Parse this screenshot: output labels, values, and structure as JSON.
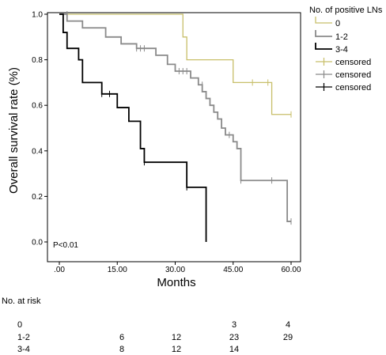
{
  "chart_data": {
    "type": "line",
    "subtype": "kaplan-meier",
    "xlabel": "Months",
    "ylabel": "Overall survival rate (%)",
    "xlim": [
      0,
      60
    ],
    "ylim": [
      0,
      1
    ],
    "xticks": [
      ".00",
      "15.00",
      "30.00",
      "45.00",
      "60.00"
    ],
    "xtick_values": [
      0,
      15,
      30,
      45,
      60
    ],
    "yticks": [
      "0.0",
      "0.2",
      "0.4",
      "0.6",
      "0.8",
      "1.0"
    ],
    "ytick_values": [
      0,
      0.2,
      0.4,
      0.6,
      0.8,
      1.0
    ],
    "grid": false,
    "legend_title": "No. of positive LNs",
    "legend_position": "top-right outside",
    "annotation": "P<0.01",
    "series": [
      {
        "name": "0",
        "censored_label": "censored",
        "color": "#c8bf6a",
        "steps": [
          [
            0,
            1.0
          ],
          [
            32,
            1.0
          ],
          [
            32,
            0.9
          ],
          [
            33,
            0.9
          ],
          [
            33,
            0.8
          ],
          [
            45,
            0.8
          ],
          [
            45,
            0.7
          ],
          [
            55,
            0.7
          ],
          [
            55,
            0.56
          ],
          [
            60,
            0.56
          ]
        ],
        "censored": [
          [
            50,
            0.7
          ],
          [
            54,
            0.7
          ],
          [
            60,
            0.56
          ]
        ]
      },
      {
        "name": "1-2",
        "censored_label": "censored",
        "color": "#8a8a8a",
        "steps": [
          [
            0,
            1.0
          ],
          [
            2,
            1.0
          ],
          [
            2,
            0.97
          ],
          [
            6,
            0.97
          ],
          [
            6,
            0.94
          ],
          [
            12,
            0.94
          ],
          [
            12,
            0.9
          ],
          [
            16,
            0.9
          ],
          [
            16,
            0.87
          ],
          [
            20,
            0.87
          ],
          [
            20,
            0.85
          ],
          [
            25,
            0.85
          ],
          [
            25,
            0.82
          ],
          [
            28,
            0.82
          ],
          [
            28,
            0.78
          ],
          [
            30,
            0.78
          ],
          [
            30,
            0.75
          ],
          [
            34,
            0.75
          ],
          [
            34,
            0.72
          ],
          [
            36,
            0.72
          ],
          [
            36,
            0.69
          ],
          [
            37,
            0.69
          ],
          [
            37,
            0.66
          ],
          [
            38,
            0.66
          ],
          [
            38,
            0.63
          ],
          [
            39,
            0.63
          ],
          [
            39,
            0.6
          ],
          [
            40,
            0.6
          ],
          [
            40,
            0.57
          ],
          [
            41,
            0.57
          ],
          [
            41,
            0.54
          ],
          [
            42,
            0.54
          ],
          [
            42,
            0.5
          ],
          [
            43,
            0.5
          ],
          [
            43,
            0.47
          ],
          [
            45,
            0.47
          ],
          [
            45,
            0.44
          ],
          [
            46,
            0.44
          ],
          [
            46,
            0.41
          ],
          [
            47,
            0.41
          ],
          [
            47,
            0.27
          ],
          [
            59,
            0.27
          ],
          [
            59,
            0.09
          ],
          [
            60,
            0.09
          ]
        ],
        "censored": [
          [
            2,
            1.0
          ],
          [
            20,
            0.85
          ],
          [
            21,
            0.85
          ],
          [
            22,
            0.85
          ],
          [
            31,
            0.75
          ],
          [
            32,
            0.75
          ],
          [
            33,
            0.75
          ],
          [
            37,
            0.69
          ],
          [
            44,
            0.47
          ],
          [
            47,
            0.27
          ],
          [
            55,
            0.27
          ],
          [
            60,
            0.09
          ]
        ]
      },
      {
        "name": "3-4",
        "censored_label": "censored",
        "color": "#000000",
        "steps": [
          [
            0,
            1.0
          ],
          [
            1,
            1.0
          ],
          [
            1,
            0.92
          ],
          [
            2,
            0.92
          ],
          [
            2,
            0.85
          ],
          [
            5,
            0.85
          ],
          [
            5,
            0.8
          ],
          [
            6,
            0.8
          ],
          [
            6,
            0.7
          ],
          [
            11,
            0.7
          ],
          [
            11,
            0.65
          ],
          [
            15,
            0.65
          ],
          [
            15,
            0.59
          ],
          [
            18,
            0.59
          ],
          [
            18,
            0.53
          ],
          [
            21,
            0.53
          ],
          [
            21,
            0.41
          ],
          [
            22,
            0.41
          ],
          [
            22,
            0.35
          ],
          [
            33,
            0.35
          ],
          [
            33,
            0.24
          ],
          [
            38,
            0.24
          ],
          [
            38,
            0.0
          ]
        ],
        "censored": [
          [
            11,
            0.65
          ],
          [
            13,
            0.65
          ],
          [
            22,
            0.35
          ],
          [
            33,
            0.24
          ]
        ]
      }
    ]
  },
  "risk_table": {
    "title": "No. at risk",
    "rows": [
      {
        "label": "0",
        "values": [
          "",
          "",
          "3",
          "4"
        ]
      },
      {
        "label": "1-2",
        "values": [
          "6",
          "12",
          "23",
          "29"
        ]
      },
      {
        "label": "3-4",
        "values": [
          "8",
          "12",
          "14",
          ""
        ]
      }
    ]
  }
}
